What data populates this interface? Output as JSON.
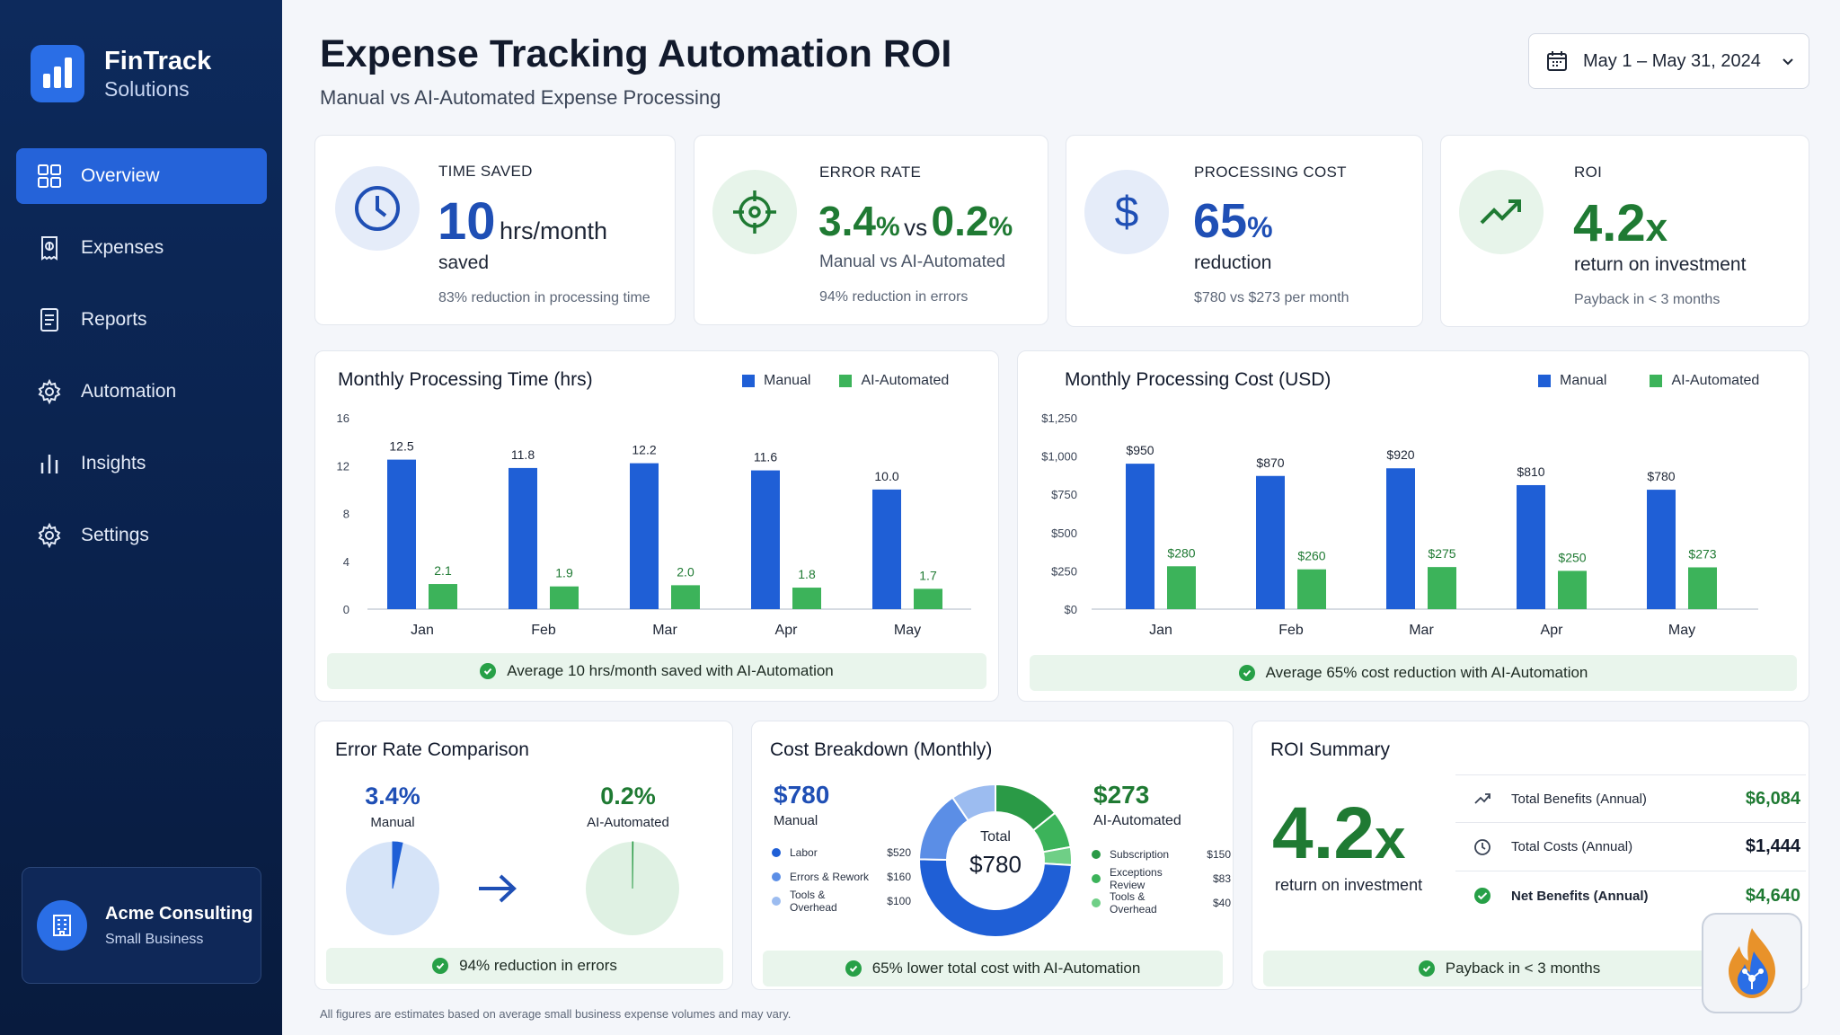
{
  "brand": {
    "name": "FinTrack",
    "subtitle": "Solutions"
  },
  "nav": [
    {
      "label": "Overview",
      "icon": "grid-icon",
      "active": true
    },
    {
      "label": "Expenses",
      "icon": "receipt-icon"
    },
    {
      "label": "Reports",
      "icon": "document-icon"
    },
    {
      "label": "Automation",
      "icon": "gear-icon"
    },
    {
      "label": "Insights",
      "icon": "bar-chart-icon"
    },
    {
      "label": "Settings",
      "icon": "settings-icon"
    }
  ],
  "account": {
    "name": "Acme Consulting",
    "type": "Small Business"
  },
  "header": {
    "title": "Expense Tracking Automation ROI",
    "subtitle": "Manual vs AI-Automated Expense Processing",
    "date_range": "May 1 – May 31, 2024"
  },
  "kpis": {
    "time_saved": {
      "label": "TIME SAVED",
      "value": "10",
      "unit": "hrs/month",
      "desc": "saved",
      "note": "83% reduction in processing time"
    },
    "error_rate": {
      "label": "ERROR RATE",
      "manual": "3.4",
      "vs": "vs",
      "auto": "0.2",
      "pct": "%",
      "desc": "Manual vs AI-Automated",
      "note": "94% reduction in errors"
    },
    "processing_cost": {
      "label": "PROCESSING COST",
      "value": "65",
      "pct": "%",
      "desc": "reduction",
      "note": "$780 vs $273 per month"
    },
    "roi": {
      "label": "ROI",
      "value": "4.2",
      "x": "x",
      "desc": "return on investment",
      "note": "Payback in < 3 months"
    }
  },
  "legend": {
    "manual": "Manual",
    "auto": "AI-Automated"
  },
  "colors": {
    "manual": "#1f5fd6",
    "auto": "#3cb35a",
    "manual_light": "#5b8ee6",
    "manual_lighter": "#9cbcf0",
    "auto_dark": "#2a9a46",
    "auto_light": "#6fcf86"
  },
  "chart_data": [
    {
      "type": "bar",
      "title": "Monthly Processing Time (hrs)",
      "categories": [
        "Jan",
        "Feb",
        "Mar",
        "Apr",
        "May"
      ],
      "series": [
        {
          "name": "Manual",
          "values": [
            12.5,
            11.8,
            12.2,
            11.6,
            10.0
          ]
        },
        {
          "name": "AI-Automated",
          "values": [
            2.1,
            1.9,
            2.0,
            1.8,
            1.7
          ]
        }
      ],
      "labels": {
        "manual": [
          "12.5",
          "11.8",
          "12.2",
          "11.6",
          "10.0"
        ],
        "auto": [
          "2.1",
          "1.9",
          "2.0",
          "1.8",
          "1.7"
        ]
      },
      "yticks": [
        "0",
        "4",
        "8",
        "12",
        "16"
      ],
      "ylim": [
        0,
        16
      ],
      "grid": false,
      "legend_position": "top-right"
    },
    {
      "type": "bar",
      "title": "Monthly Processing Cost (USD)",
      "categories": [
        "Jan",
        "Feb",
        "Mar",
        "Apr",
        "May"
      ],
      "series": [
        {
          "name": "Manual",
          "values": [
            950,
            870,
            920,
            810,
            780
          ]
        },
        {
          "name": "AI-Automated",
          "values": [
            280,
            260,
            275,
            250,
            273
          ]
        }
      ],
      "labels": {
        "manual": [
          "$950",
          "$870",
          "$920",
          "$810",
          "$780"
        ],
        "auto": [
          "$280",
          "$260",
          "$275",
          "$250",
          "$273"
        ]
      },
      "yticks": [
        "$0",
        "$250",
        "$500",
        "$750",
        "$1,000",
        "$1,250"
      ],
      "ylim": [
        0,
        1250
      ],
      "grid": false,
      "legend_position": "top-right"
    },
    {
      "type": "pie",
      "title": "Error Rate Comparison",
      "slices": [
        {
          "name": "Manual",
          "value": 3.4,
          "label": "3.4%"
        },
        {
          "name": "AI-Automated",
          "value": 0.2,
          "label": "0.2%"
        }
      ]
    },
    {
      "type": "pie",
      "title": "Cost Breakdown (Monthly)",
      "center_label": "Total",
      "center_value": "$780",
      "manual_total": "$780",
      "auto_total": "$273",
      "manual": [
        {
          "name": "Labor",
          "value": 520,
          "label": "$520"
        },
        {
          "name": "Errors & Rework",
          "value": 160,
          "label": "$160"
        },
        {
          "name": "Tools & Overhead",
          "value": 100,
          "label": "$100"
        }
      ],
      "auto": [
        {
          "name": "Subscription",
          "value": 150,
          "label": "$150"
        },
        {
          "name": "Exceptions Review",
          "value": 83,
          "label": "$83"
        },
        {
          "name": "Tools & Overhead",
          "value": 40,
          "label": "$40"
        }
      ]
    }
  ],
  "time_chart": {
    "banner": "Average 10 hrs/month saved with AI-Automation"
  },
  "cost_chart": {
    "banner": "Average 65% cost reduction with AI-Automation"
  },
  "error_panel": {
    "title": "Error Rate Comparison",
    "manual_value": "3.4%",
    "manual_label": "Manual",
    "auto_value": "0.2%",
    "auto_label": "AI-Automated",
    "banner": "94% reduction in errors"
  },
  "breakdown_panel": {
    "title": "Cost Breakdown (Monthly)",
    "manual_value": "$780",
    "manual_label": "Manual",
    "auto_value": "$273",
    "auto_label": "AI-Automated",
    "center_label": "Total",
    "center_value": "$780",
    "banner": "65% lower total cost with AI-Automation"
  },
  "roi_panel": {
    "title": "ROI Summary",
    "value": "4.2",
    "x": "x",
    "desc": "return on investment",
    "rows": [
      {
        "label": "Total Benefits (Annual)",
        "amount": "$6,084",
        "icon": "trend-icon"
      },
      {
        "label": "Total Costs (Annual)",
        "amount": "$1,444",
        "icon": "clock-icon"
      },
      {
        "label": "Net Benefits (Annual)",
        "amount": "$4,640",
        "icon": "check-icon"
      }
    ],
    "banner": "Payback in < 3 months"
  },
  "footnote": "All figures are estimates based on average small business expense volumes and may vary."
}
